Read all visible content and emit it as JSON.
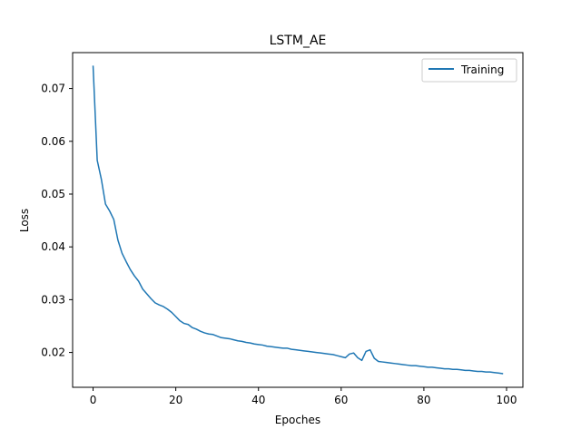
{
  "chart_data": {
    "type": "line",
    "title": "LSTM_AE",
    "xlabel": "Epoches",
    "ylabel": "Loss",
    "xlim": [
      -4.95,
      103.95
    ],
    "ylim": [
      0.0134,
      0.0768
    ],
    "xticks": [
      0,
      20,
      40,
      60,
      80,
      100
    ],
    "xtick_labels": [
      "0",
      "20",
      "40",
      "60",
      "80",
      "100"
    ],
    "yticks": [
      0.02,
      0.03,
      0.04,
      0.05,
      0.06,
      0.07
    ],
    "ytick_labels": [
      "0.02",
      "0.03",
      "0.04",
      "0.05",
      "0.06",
      "0.07"
    ],
    "grid": false,
    "legend": {
      "position": "top-right",
      "entries": [
        "Training"
      ]
    },
    "series": [
      {
        "name": "Training",
        "color": "#1f77b4",
        "x": [
          0,
          1,
          2,
          3,
          4,
          5,
          6,
          7,
          8,
          9,
          10,
          11,
          12,
          13,
          14,
          15,
          16,
          17,
          18,
          19,
          20,
          21,
          22,
          23,
          24,
          25,
          26,
          27,
          28,
          29,
          30,
          31,
          32,
          33,
          34,
          35,
          36,
          37,
          38,
          39,
          40,
          41,
          42,
          43,
          44,
          45,
          46,
          47,
          48,
          49,
          50,
          51,
          52,
          53,
          54,
          55,
          56,
          57,
          58,
          59,
          60,
          61,
          62,
          63,
          64,
          65,
          66,
          67,
          68,
          69,
          70,
          71,
          72,
          73,
          74,
          75,
          76,
          77,
          78,
          79,
          80,
          81,
          82,
          83,
          84,
          85,
          86,
          87,
          88,
          89,
          90,
          91,
          92,
          93,
          94,
          95,
          96,
          97,
          98,
          99
        ],
        "y": [
          0.0742,
          0.0564,
          0.0528,
          0.0481,
          0.0468,
          0.0452,
          0.0413,
          0.0388,
          0.0372,
          0.0357,
          0.0345,
          0.0335,
          0.032,
          0.0311,
          0.0302,
          0.0294,
          0.029,
          0.0287,
          0.0282,
          0.0276,
          0.0268,
          0.026,
          0.0255,
          0.0253,
          0.0247,
          0.0244,
          0.024,
          0.0237,
          0.0235,
          0.0234,
          0.0231,
          0.0228,
          0.0227,
          0.0226,
          0.0224,
          0.0222,
          0.0221,
          0.0219,
          0.0218,
          0.0216,
          0.0215,
          0.0214,
          0.0212,
          0.0211,
          0.021,
          0.0209,
          0.0208,
          0.0208,
          0.0206,
          0.0205,
          0.0204,
          0.0203,
          0.0202,
          0.0201,
          0.02,
          0.0199,
          0.0198,
          0.0197,
          0.0196,
          0.0194,
          0.0192,
          0.019,
          0.0197,
          0.0199,
          0.019,
          0.0185,
          0.0202,
          0.0205,
          0.0189,
          0.0183,
          0.0182,
          0.0181,
          0.018,
          0.0179,
          0.0178,
          0.0177,
          0.0176,
          0.0175,
          0.0175,
          0.0174,
          0.0173,
          0.0172,
          0.0172,
          0.0171,
          0.017,
          0.0169,
          0.0169,
          0.0168,
          0.0168,
          0.0167,
          0.0166,
          0.0166,
          0.0165,
          0.0164,
          0.0164,
          0.0163,
          0.0163,
          0.0162,
          0.0161,
          0.016
        ]
      }
    ]
  }
}
